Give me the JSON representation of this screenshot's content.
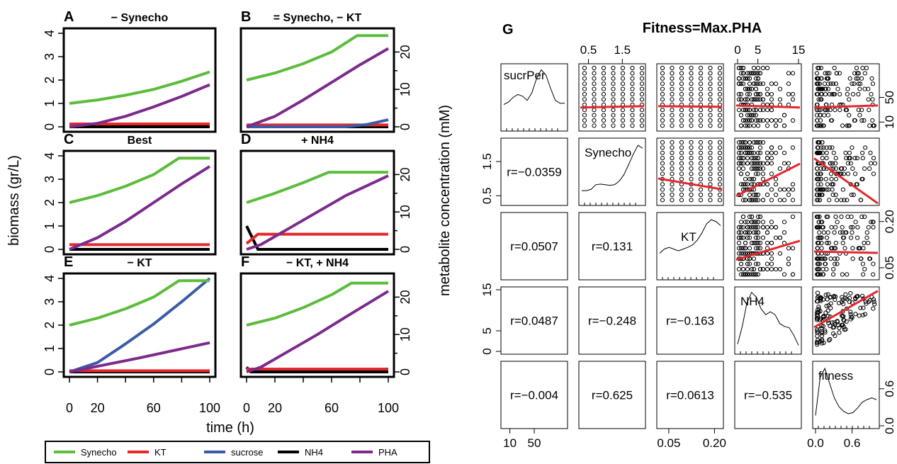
{
  "colors": {
    "Synecho": "#5cbc3c",
    "KT": "#e4282c",
    "sucrose": "#3a5ba6",
    "NH4": "#000000",
    "PHA": "#7c2a8c",
    "fit": "#e4282c"
  },
  "labels": {
    "ylabel_left": "biomass (gr/L)",
    "ylabel_right": "metabolite concentration (mM)",
    "xlabel": "time (h)",
    "g_letter": "G",
    "g_title": "Fitness=Max.PHA"
  },
  "legend": {
    "items": [
      {
        "key": "Synecho",
        "label": "Synecho"
      },
      {
        "key": "KT",
        "label": "KT"
      },
      {
        "key": "sucrose",
        "label": "sucrose"
      },
      {
        "key": "NH4",
        "label": "NH4"
      },
      {
        "key": "PHA",
        "label": "PHA"
      }
    ]
  },
  "chart_data": [
    {
      "type": "line",
      "axes": {
        "x": {
          "range": [
            0,
            100
          ],
          "ticks": [
            0,
            20,
            60,
            100
          ],
          "ticklabels": [
            "0",
            "20",
            "60",
            "100"
          ]
        },
        "y_left": {
          "range": [
            0,
            4
          ],
          "ticks": [
            0,
            1,
            2,
            3,
            4
          ],
          "ticklabels": [
            "0",
            "1",
            "2",
            "3",
            "4"
          ]
        },
        "y_right": {
          "range": [
            0,
            25
          ],
          "ticks": [
            0,
            10,
            20
          ],
          "ticklabels": [
            "0",
            "10",
            "20"
          ]
        }
      },
      "panels": [
        {
          "letter": "A",
          "title": "− Synecho",
          "series": [
            {
              "key": "Synecho",
              "x": [
                0,
                20,
                40,
                60,
                80,
                100
              ],
              "y": [
                1.0,
                1.15,
                1.35,
                1.6,
                1.95,
                2.35
              ]
            },
            {
              "key": "PHA",
              "x": [
                0,
                20,
                40,
                60,
                80,
                100
              ],
              "y": [
                0,
                0.15,
                0.45,
                0.85,
                1.3,
                1.8
              ]
            },
            {
              "key": "KT",
              "x": [
                0,
                100
              ],
              "y": [
                0.12,
                0.12
              ]
            },
            {
              "key": "NH4",
              "x": [
                0,
                100
              ],
              "y": [
                0,
                0
              ]
            }
          ]
        },
        {
          "letter": "B",
          "title": "= Synecho, − KT",
          "series": [
            {
              "key": "Synecho",
              "x": [
                0,
                20,
                40,
                60,
                78,
                100
              ],
              "y": [
                2.0,
                2.3,
                2.7,
                3.2,
                3.9,
                3.9
              ]
            },
            {
              "key": "PHA",
              "x": [
                0,
                20,
                40,
                60,
                80,
                100
              ],
              "y": [
                0,
                0.45,
                1.15,
                1.9,
                2.65,
                3.35
              ]
            },
            {
              "key": "KT",
              "x": [
                0,
                100
              ],
              "y": [
                0.08,
                0.08
              ]
            },
            {
              "key": "NH4",
              "x": [
                0,
                100
              ],
              "y": [
                0,
                0
              ]
            },
            {
              "key": "sucrose",
              "x": [
                0,
                70,
                85,
                100
              ],
              "y": [
                0,
                0,
                0.1,
                0.3
              ]
            }
          ]
        },
        {
          "letter": "C",
          "title": "Best",
          "series": [
            {
              "key": "Synecho",
              "x": [
                0,
                20,
                40,
                60,
                78,
                100
              ],
              "y": [
                2.0,
                2.3,
                2.7,
                3.2,
                3.9,
                3.9
              ]
            },
            {
              "key": "PHA",
              "x": [
                0,
                20,
                40,
                60,
                80,
                100
              ],
              "y": [
                0,
                0.5,
                1.2,
                2.0,
                2.8,
                3.55
              ]
            },
            {
              "key": "KT",
              "x": [
                0,
                100
              ],
              "y": [
                0.2,
                0.2
              ]
            },
            {
              "key": "NH4",
              "x": [
                0,
                100
              ],
              "y": [
                0,
                0
              ]
            }
          ]
        },
        {
          "letter": "D",
          "title": "+ NH4",
          "series": [
            {
              "key": "Synecho",
              "x": [
                0,
                20,
                40,
                58,
                100
              ],
              "y": [
                2.0,
                2.4,
                2.85,
                3.3,
                3.3
              ]
            },
            {
              "key": "PHA",
              "x": [
                0,
                10,
                30,
                50,
                70,
                100
              ],
              "y": [
                0,
                0.2,
                0.9,
                1.6,
                2.3,
                3.15
              ]
            },
            {
              "key": "KT",
              "x": [
                0,
                8,
                100
              ],
              "y": [
                0.25,
                0.65,
                0.65
              ]
            },
            {
              "key": "NH4",
              "x": [
                0,
                8,
                100
              ],
              "y": [
                1.0,
                0,
                0
              ]
            }
          ]
        },
        {
          "letter": "E",
          "title": "− KT",
          "series": [
            {
              "key": "Synecho",
              "x": [
                0,
                20,
                40,
                60,
                78,
                100
              ],
              "y": [
                2.0,
                2.3,
                2.7,
                3.2,
                3.9,
                3.9
              ]
            },
            {
              "key": "sucrose",
              "x": [
                0,
                20,
                40,
                60,
                80,
                100
              ],
              "y": [
                0,
                0.4,
                1.2,
                2.05,
                3.0,
                4.0
              ]
            },
            {
              "key": "PHA",
              "x": [
                0,
                50,
                100
              ],
              "y": [
                0,
                0.6,
                1.25
              ]
            },
            {
              "key": "KT",
              "x": [
                0,
                100
              ],
              "y": [
                0.05,
                0.05
              ]
            },
            {
              "key": "NH4",
              "x": [
                0,
                100
              ],
              "y": [
                0,
                0
              ]
            }
          ]
        },
        {
          "letter": "F",
          "title": "− KT, + NH4",
          "series": [
            {
              "key": "Synecho",
              "x": [
                0,
                20,
                40,
                60,
                74,
                100
              ],
              "y": [
                2.0,
                2.3,
                2.75,
                3.3,
                3.8,
                3.8
              ]
            },
            {
              "key": "PHA",
              "x": [
                0,
                10,
                30,
                50,
                70,
                100
              ],
              "y": [
                0,
                0.2,
                0.9,
                1.6,
                2.35,
                3.45
              ]
            },
            {
              "key": "KT",
              "x": [
                0,
                100
              ],
              "y": [
                0.12,
                0.12
              ]
            },
            {
              "key": "NH4",
              "x": [
                0,
                3,
                100
              ],
              "y": [
                0.2,
                0,
                0
              ]
            }
          ]
        }
      ]
    },
    {
      "type": "scatter",
      "title": "Fitness=Max.PHA",
      "variables": [
        {
          "name": "sucrPer",
          "range": [
            0,
            100
          ],
          "ticks": [
            10,
            50
          ],
          "ticklabels": [
            "10",
            "50"
          ]
        },
        {
          "name": "Synecho",
          "range": [
            0.3,
            2.1
          ],
          "ticks": [
            0.5,
            1.5
          ],
          "ticklabels": [
            "0.5",
            "1.5"
          ]
        },
        {
          "name": "KT",
          "range": [
            0.02,
            0.22
          ],
          "ticks": [
            0.05,
            0.2
          ],
          "ticklabels": [
            "0.05",
            "0.20"
          ]
        },
        {
          "name": "NH4",
          "range": [
            0,
            15
          ],
          "ticks": [
            0,
            5,
            15
          ],
          "ticklabels": [
            "0",
            "5",
            "15"
          ]
        },
        {
          "name": "fitness",
          "range": [
            0,
            1
          ],
          "ticks": [
            0,
            0.6
          ],
          "ticklabels": [
            "0.0",
            "0.6"
          ]
        }
      ],
      "right_axis_ticks": [
        [
          "50"
        ],
        [
          "0.5",
          "1.5"
        ],
        [
          "0.05",
          "0.20"
        ],
        [
          "0",
          "5",
          "15"
        ],
        [
          "0.0",
          "0.6"
        ]
      ],
      "correlations": [
        {
          "row": 1,
          "col": 0,
          "r": "r=−0.0359"
        },
        {
          "row": 2,
          "col": 0,
          "r": "r=0.0507"
        },
        {
          "row": 2,
          "col": 1,
          "r": "r=0.131"
        },
        {
          "row": 3,
          "col": 0,
          "r": "r=0.0487"
        },
        {
          "row": 3,
          "col": 1,
          "r": "r=−0.248"
        },
        {
          "row": 3,
          "col": 2,
          "r": "r=−0.163"
        },
        {
          "row": 4,
          "col": 0,
          "r": "r=−0.004"
        },
        {
          "row": 4,
          "col": 1,
          "r": "r=0.625"
        },
        {
          "row": 4,
          "col": 2,
          "r": "r=0.0613"
        },
        {
          "row": 4,
          "col": 3,
          "r": "r=−0.535"
        }
      ],
      "fit_lines": [
        {
          "row": 0,
          "col": 1,
          "y": [
            0.65,
            0.63
          ]
        },
        {
          "row": 0,
          "col": 2,
          "y": [
            0.63,
            0.64
          ]
        },
        {
          "row": 0,
          "col": 3,
          "y": [
            0.62,
            0.65
          ]
        },
        {
          "row": 0,
          "col": 4,
          "y": [
            0.65,
            0.62
          ]
        },
        {
          "row": 1,
          "col": 2,
          "y": [
            0.6,
            0.76
          ]
        },
        {
          "row": 1,
          "col": 3,
          "y": [
            0.86,
            0.38
          ]
        },
        {
          "row": 1,
          "col": 4,
          "y": [
            0.3,
            0.97
          ]
        },
        {
          "row": 2,
          "col": 3,
          "y": [
            0.7,
            0.42
          ]
        },
        {
          "row": 2,
          "col": 4,
          "y": [
            0.58,
            0.6
          ]
        },
        {
          "row": 3,
          "col": 4,
          "y": [
            0.6,
            0.06
          ]
        }
      ]
    }
  ]
}
